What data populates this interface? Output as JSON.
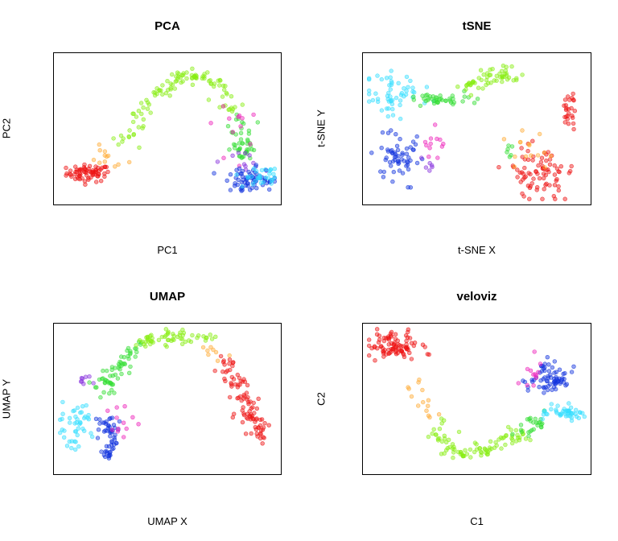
{
  "colors": {
    "red": "#ee1111",
    "orange": "#ffaa33",
    "green_yellow": "#88ee11",
    "green": "#33dd33",
    "cyan": "#33ddff",
    "blue": "#1133dd",
    "purple": "#8833dd",
    "magenta": "#ee22bb"
  },
  "chart_data": [
    {
      "type": "scatter",
      "title": "PCA",
      "xlabel": "PC1",
      "ylabel": "PC2",
      "axes": "no ticks",
      "xlim": [
        0,
        100
      ],
      "ylim": [
        0,
        100
      ],
      "clusters": [
        {
          "color": "red",
          "center": [
            14,
            19
          ],
          "spread": [
            5,
            3
          ],
          "n": 70,
          "shape": "elongated"
        },
        {
          "color": "orange",
          "center": [
            22,
            29
          ],
          "spread": [
            5,
            4
          ],
          "n": 12
        },
        {
          "color": "green_yellow",
          "path": [
            [
              30,
              42
            ],
            [
              45,
              75
            ],
            [
              60,
              88
            ],
            [
              72,
              83
            ],
            [
              80,
              60
            ]
          ],
          "n": 110
        },
        {
          "color": "green",
          "path": [
            [
              82,
              58
            ],
            [
              84,
              42
            ],
            [
              86,
              30
            ]
          ],
          "n": 45
        },
        {
          "color": "magenta",
          "center": [
            80,
            45
          ],
          "spread": [
            6,
            10
          ],
          "n": 12
        },
        {
          "color": "purple",
          "center": [
            85,
            28
          ],
          "spread": [
            5,
            4
          ],
          "n": 10
        },
        {
          "color": "blue",
          "center": [
            88,
            14
          ],
          "spread": [
            5,
            4
          ],
          "n": 70
        },
        {
          "color": "cyan",
          "center": [
            93,
            16
          ],
          "spread": [
            4,
            4
          ],
          "n": 30
        }
      ]
    },
    {
      "type": "scatter",
      "title": "tSNE",
      "xlabel": "t-SNE X",
      "ylabel": "t-SNE Y",
      "axes": "no ticks",
      "xlim": [
        0,
        100
      ],
      "ylim": [
        0,
        100
      ],
      "clusters": [
        {
          "color": "cyan",
          "center": [
            12,
            74
          ],
          "spread": [
            6,
            8
          ],
          "n": 55
        },
        {
          "color": "green",
          "path": [
            [
              22,
              72
            ],
            [
              35,
              70
            ],
            [
              45,
              72
            ]
          ],
          "n": 40
        },
        {
          "color": "green_yellow",
          "path": [
            [
              45,
              78
            ],
            [
              58,
              88
            ],
            [
              68,
              86
            ]
          ],
          "n": 55
        },
        {
          "color": "blue",
          "center": [
            13,
            30
          ],
          "spread": [
            6,
            10
          ],
          "n": 60
        },
        {
          "color": "magenta",
          "center": [
            31,
            40
          ],
          "spread": [
            3,
            6
          ],
          "n": 12
        },
        {
          "color": "purple",
          "center": [
            28,
            25
          ],
          "spread": [
            2,
            3
          ],
          "n": 6
        },
        {
          "color": "red",
          "center": [
            80,
            20
          ],
          "spread": [
            7,
            9
          ],
          "n": 80
        },
        {
          "color": "red",
          "center": [
            92,
            60
          ],
          "spread": [
            2,
            10
          ],
          "n": 25
        },
        {
          "color": "orange",
          "center": [
            72,
            30
          ],
          "spread": [
            5,
            8
          ],
          "n": 15
        },
        {
          "color": "green",
          "center": [
            64,
            33
          ],
          "spread": [
            2,
            3
          ],
          "n": 6
        }
      ]
    },
    {
      "type": "scatter",
      "title": "UMAP",
      "xlabel": "UMAP X",
      "ylabel": "UMAP Y",
      "axes": "no ticks",
      "xlim": [
        0,
        100
      ],
      "ylim": [
        0,
        100
      ],
      "clusters": [
        {
          "color": "cyan",
          "center": [
            8,
            30
          ],
          "spread": [
            4,
            8
          ],
          "n": 45
        },
        {
          "color": "blue",
          "path": [
            [
              22,
              38
            ],
            [
              24,
              25
            ],
            [
              24,
              8
            ]
          ],
          "n": 55
        },
        {
          "color": "magenta",
          "center": [
            30,
            32
          ],
          "spread": [
            3,
            8
          ],
          "n": 12
        },
        {
          "color": "purple",
          "center": [
            13,
            63
          ],
          "spread": [
            2,
            3
          ],
          "n": 8
        },
        {
          "color": "green",
          "path": [
            [
              20,
              55
            ],
            [
              27,
              72
            ],
            [
              37,
              88
            ]
          ],
          "n": 60
        },
        {
          "color": "green_yellow",
          "path": [
            [
              38,
              88
            ],
            [
              50,
              95
            ],
            [
              60,
              93
            ]
          ],
          "n": 50
        },
        {
          "color": "green_yellow",
          "center": [
            66,
            92
          ],
          "spread": [
            3,
            2
          ],
          "n": 8
        },
        {
          "color": "orange",
          "center": [
            71,
            83
          ],
          "spread": [
            3,
            3
          ],
          "n": 8
        },
        {
          "color": "red",
          "path": [
            [
              75,
              78
            ],
            [
              82,
              60
            ],
            [
              88,
              38
            ],
            [
              95,
              22
            ]
          ],
          "n": 95
        }
      ]
    },
    {
      "type": "scatter",
      "title": "veloviz",
      "xlabel": "C1",
      "ylabel": "C2",
      "axes": "no ticks",
      "xlim": [
        0,
        100
      ],
      "ylim": [
        0,
        100
      ],
      "clusters": [
        {
          "color": "red",
          "center": [
            12,
            87
          ],
          "spread": [
            6,
            5
          ],
          "n": 90
        },
        {
          "color": "orange",
          "path": [
            [
              24,
              65
            ],
            [
              30,
              35
            ]
          ],
          "n": 14
        },
        {
          "color": "green_yellow",
          "path": [
            [
              31,
              30
            ],
            [
              40,
              10
            ],
            [
              55,
              15
            ],
            [
              70,
              25
            ]
          ],
          "n": 90
        },
        {
          "color": "green",
          "path": [
            [
              72,
              26
            ],
            [
              78,
              38
            ]
          ],
          "n": 25
        },
        {
          "color": "blue",
          "center": [
            82,
            63
          ],
          "spread": [
            5,
            6
          ],
          "n": 70
        },
        {
          "color": "magenta",
          "center": [
            75,
            68
          ],
          "spread": [
            2,
            6
          ],
          "n": 12
        },
        {
          "color": "cyan",
          "center": [
            91,
            40
          ],
          "spread": [
            5,
            3
          ],
          "n": 45
        }
      ]
    }
  ]
}
